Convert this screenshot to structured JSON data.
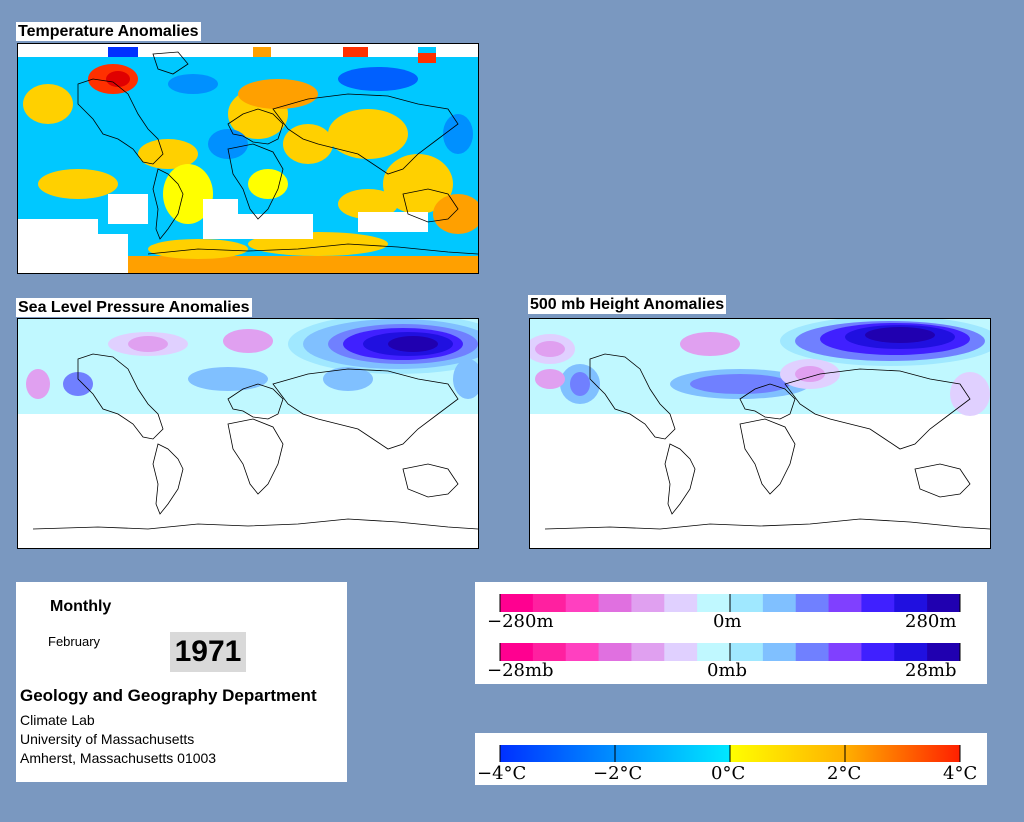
{
  "panels": {
    "temperature": {
      "title": "Temperature Anomalies"
    },
    "slp": {
      "title": "Sea Level Pressure Anomalies"
    },
    "height": {
      "title": "500 mb Height Anomalies"
    }
  },
  "info": {
    "mode": "Monthly",
    "month": "February",
    "year": "1971",
    "department": "Geology and Geography Department",
    "lab": "Climate Lab",
    "university": "University of Massachusetts",
    "address": "Amherst, Massachusetts 01003"
  },
  "legends": {
    "height": {
      "min": "−280m",
      "mid": "0m",
      "max": "280m"
    },
    "pressure": {
      "min": "−28mb",
      "mid": "0mb",
      "max": "28mb"
    },
    "temp": {
      "labels": [
        "−4°C",
        "−2°C",
        "0°C",
        "2°C",
        "4°C"
      ]
    }
  },
  "colors": {
    "background": "#7a98c0",
    "warm": [
      "#ffff00",
      "#ffd000",
      "#ffa000",
      "#ff7000",
      "#ff3000",
      "#e00000"
    ],
    "cool": [
      "#00e0ff",
      "#00c0ff",
      "#0090ff",
      "#0060ff",
      "#0030ff"
    ],
    "height_scale": [
      "#ff0090",
      "#ff20a0",
      "#ff40c0",
      "#e070e0",
      "#e0a0f0",
      "#e0d0ff",
      "#c0f8ff",
      "#a0e8ff",
      "#80c0ff",
      "#7080ff",
      "#8040ff",
      "#4020ff",
      "#2010e0",
      "#2000b0"
    ]
  }
}
